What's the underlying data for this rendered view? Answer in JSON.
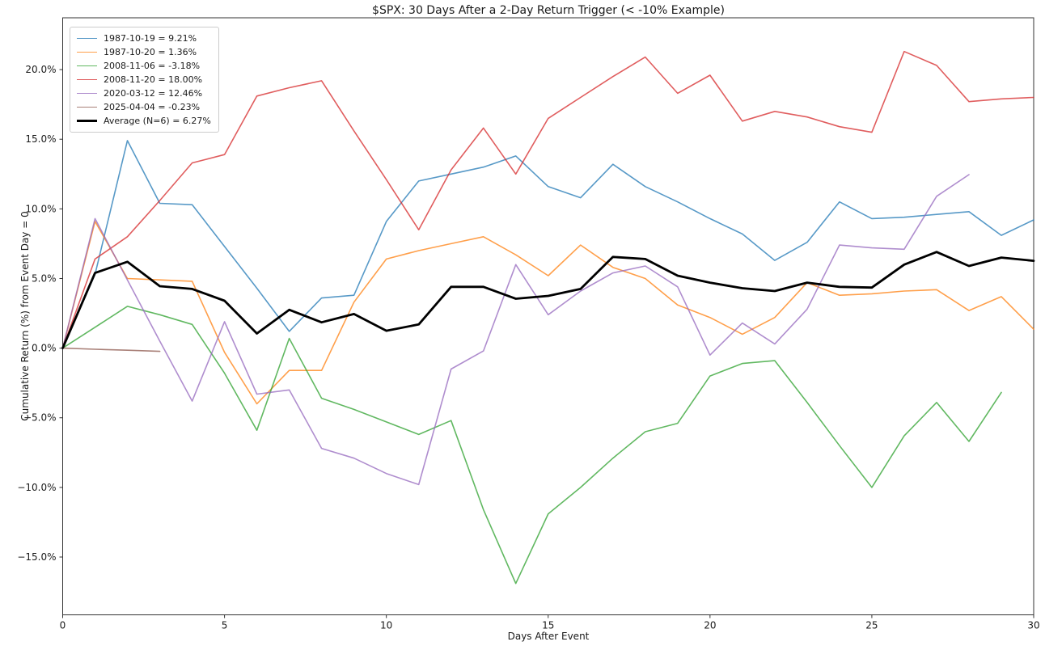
{
  "chart_data": {
    "type": "line",
    "title": "$SPX: 30 Days After a 2-Day Return Trigger (< -10% Example)",
    "xlabel": "Days After Event",
    "ylabel": "Cumulative Return (%) from Event Day = 0",
    "xlim": [
      0,
      30
    ],
    "ylim": [
      -19.15,
      23.72
    ],
    "grid": false,
    "legend_position": "upper-left",
    "x_ticks": [
      0,
      5,
      10,
      15,
      20,
      25,
      30
    ],
    "y_ticks": [
      {
        "value": 20,
        "label": "20.0%"
      },
      {
        "value": 15,
        "label": "15.0%"
      },
      {
        "value": 10,
        "label": "10.0%"
      },
      {
        "value": 5,
        "label": "5.0%"
      },
      {
        "value": 0,
        "label": "0.0%"
      },
      {
        "value": -5,
        "label": "−5.0%"
      },
      {
        "value": -10,
        "label": "−10.0%"
      },
      {
        "value": -15,
        "label": "−15.0%"
      }
    ],
    "series": [
      {
        "name": "1987-10-19",
        "legend_label": "1987-10-19 = 9.21%",
        "final_return_pct": 9.21,
        "color": "#1f77b4",
        "opacity": 0.75,
        "line_width": 1.6,
        "x_start": 0,
        "values": [
          0.0,
          5.3,
          14.9,
          10.4,
          10.3,
          7.3,
          4.3,
          1.2,
          3.6,
          3.8,
          9.1,
          12.0,
          12.5,
          13.0,
          13.8,
          11.6,
          10.8,
          13.2,
          11.6,
          10.5,
          9.3,
          8.2,
          6.3,
          7.6,
          10.5,
          9.3,
          9.4,
          9.6,
          9.8,
          8.1,
          9.21
        ]
      },
      {
        "name": "1987-10-20",
        "legend_label": "1987-10-20 = 1.36%",
        "final_return_pct": 1.36,
        "color": "#ff7f0e",
        "opacity": 0.75,
        "line_width": 1.6,
        "x_start": 0,
        "values": [
          0.0,
          9.1,
          5.0,
          4.9,
          4.8,
          -0.3,
          -4.0,
          -1.6,
          -1.6,
          3.3,
          6.4,
          7.0,
          7.5,
          8.0,
          6.7,
          5.2,
          7.4,
          5.8,
          5.0,
          3.1,
          2.2,
          1.0,
          2.2,
          4.7,
          3.8,
          3.9,
          4.1,
          4.2,
          2.7,
          3.7,
          1.36
        ]
      },
      {
        "name": "2008-11-06",
        "legend_label": "2008-11-06 = -3.18%",
        "final_return_pct": -3.18,
        "color": "#2ca02c",
        "opacity": 0.75,
        "line_width": 1.6,
        "x_start": 0,
        "values": [
          0.0,
          1.5,
          3.0,
          2.4,
          1.7,
          -1.8,
          -5.9,
          0.7,
          -3.6,
          -4.4,
          -5.3,
          -6.2,
          -5.2,
          -11.6,
          -16.9,
          -11.9,
          -10.0,
          -7.9,
          -6.0,
          -5.4,
          -2.0,
          -1.1,
          -0.9,
          -3.9,
          -7.0,
          -10.0,
          -6.3,
          -3.9,
          -6.7,
          -3.18
        ]
      },
      {
        "name": "2008-11-20",
        "legend_label": "2008-11-20 = 18.00%",
        "final_return_pct": 18.0,
        "color": "#d62728",
        "opacity": 0.75,
        "line_width": 1.6,
        "x_start": 0,
        "values": [
          0.0,
          6.4,
          8.0,
          10.6,
          13.3,
          13.9,
          18.1,
          18.7,
          19.2,
          15.6,
          12.1,
          8.5,
          12.8,
          15.8,
          12.5,
          16.5,
          18.0,
          19.5,
          20.9,
          18.3,
          19.6,
          16.3,
          17.0,
          16.6,
          15.9,
          15.5,
          21.3,
          20.3,
          17.7,
          17.9,
          18.0
        ]
      },
      {
        "name": "2020-03-12",
        "legend_label": "2020-03-12 = 12.46%",
        "final_return_pct": 12.46,
        "color": "#9467bd",
        "opacity": 0.75,
        "line_width": 1.6,
        "x_start": 0,
        "values": [
          0.0,
          9.3,
          4.9,
          0.5,
          -3.8,
          1.9,
          -3.3,
          -3.0,
          -7.2,
          -7.9,
          -9.0,
          -9.8,
          -1.5,
          -0.2,
          6.0,
          2.4,
          4.1,
          5.4,
          5.9,
          4.4,
          -0.5,
          1.8,
          0.3,
          2.8,
          7.4,
          7.2,
          7.1,
          10.9,
          12.46
        ]
      },
      {
        "name": "2025-04-04",
        "legend_label": "2025-04-04 = -0.23%",
        "final_return_pct": -0.23,
        "color": "#8c564b",
        "opacity": 0.75,
        "line_width": 1.6,
        "x_start": 0,
        "values": [
          0.0,
          -0.08,
          -0.15,
          -0.23
        ]
      },
      {
        "name": "Average (N=6)",
        "legend_label": "Average (N=6) = 6.27%",
        "final_return_pct": 6.27,
        "color": "#000000",
        "opacity": 1.0,
        "line_width": 2.8,
        "x_start": 0,
        "values": [
          0.0,
          5.4,
          6.2,
          4.45,
          4.25,
          3.4,
          1.05,
          2.75,
          1.85,
          2.45,
          1.25,
          1.7,
          4.4,
          4.4,
          3.55,
          3.75,
          4.25,
          6.55,
          6.4,
          5.2,
          4.7,
          4.3,
          4.1,
          4.7,
          4.4,
          4.35,
          6.0,
          6.9,
          5.9,
          6.5,
          6.27
        ]
      }
    ]
  }
}
